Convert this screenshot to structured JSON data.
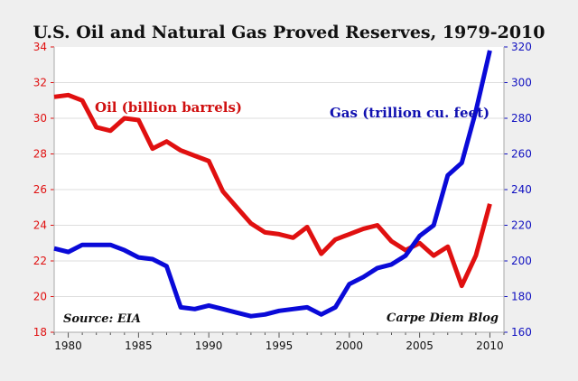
{
  "chart_data": {
    "type": "line",
    "title": "U.S. Oil and Natural Gas Proved Reserves, 1979-2010",
    "x": [
      1979,
      1980,
      1981,
      1982,
      1983,
      1984,
      1985,
      1986,
      1987,
      1988,
      1989,
      1990,
      1991,
      1992,
      1993,
      1994,
      1995,
      1996,
      1997,
      1998,
      1999,
      2000,
      2001,
      2002,
      2003,
      2004,
      2005,
      2006,
      2007,
      2008,
      2009,
      2010
    ],
    "xlim": [
      1979,
      2011
    ],
    "xticks": [
      1980,
      1985,
      1990,
      1995,
      2000,
      2005,
      2010
    ],
    "series": [
      {
        "name": "Oil (billion barrels)",
        "axis": "left",
        "color": "#e01010",
        "values": [
          31.2,
          31.3,
          31.0,
          29.5,
          29.3,
          30.0,
          29.9,
          28.3,
          28.7,
          28.2,
          27.9,
          27.6,
          25.9,
          25.0,
          24.1,
          23.6,
          23.5,
          23.3,
          23.9,
          22.4,
          23.2,
          23.5,
          23.8,
          24.0,
          23.1,
          22.6,
          23.0,
          22.3,
          22.8,
          20.6,
          22.3,
          25.2
        ]
      },
      {
        "name": "Gas (trillion cu. feet)",
        "axis": "right",
        "color": "#0a0ad8",
        "values": [
          207,
          205,
          209,
          209,
          209,
          206,
          202,
          201,
          197,
          174,
          173,
          175,
          173,
          171,
          169,
          170,
          172,
          173,
          174,
          170,
          174,
          187,
          191,
          196,
          198,
          203,
          214,
          220,
          248,
          255,
          284,
          318
        ]
      }
    ],
    "ylim_left": [
      18,
      34
    ],
    "yticks_left": [
      18,
      20,
      22,
      24,
      26,
      28,
      30,
      32,
      34
    ],
    "ylim_right": [
      160,
      320
    ],
    "yticks_right": [
      160,
      180,
      200,
      220,
      240,
      260,
      280,
      300,
      320
    ],
    "grid": true,
    "annotations": {
      "source": "Source: EIA",
      "credit": "Carpe Diem Blog"
    }
  }
}
